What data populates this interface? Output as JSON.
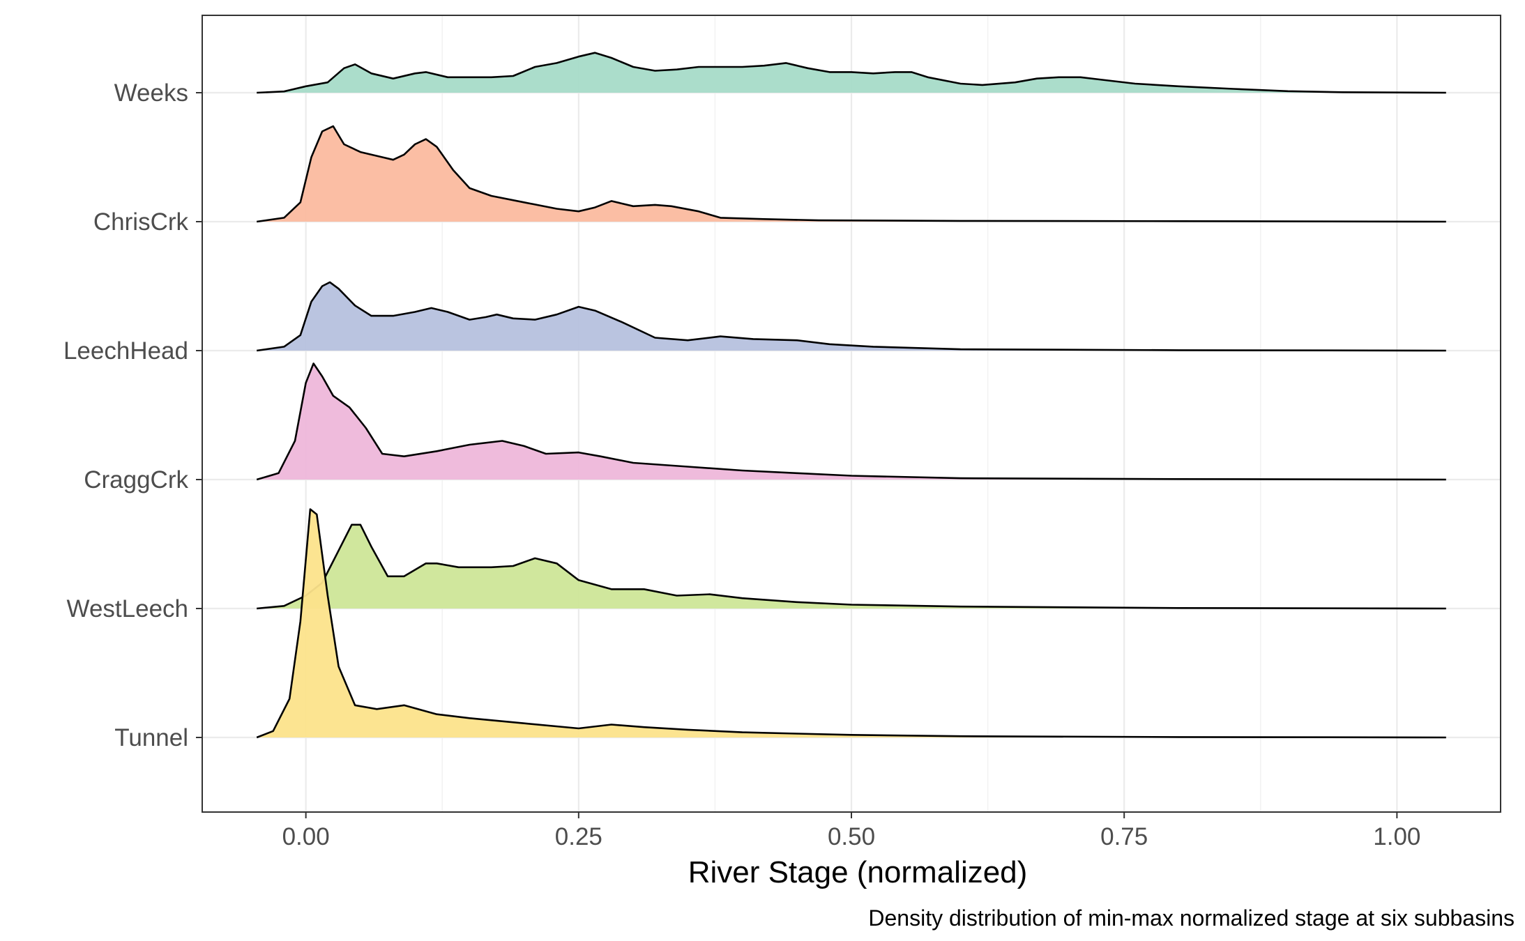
{
  "chart_data": {
    "type": "ridgeline",
    "xlabel": "River Stage (normalized)",
    "ylabel": "",
    "caption": "Density distribution of min-max normalized stage at six subbasins",
    "xlim": [
      -0.095,
      1.095
    ],
    "x_ticks": [
      0.0,
      0.25,
      0.5,
      0.75,
      1.0
    ],
    "x_tick_labels": [
      "0.00",
      "0.25",
      "0.50",
      "0.75",
      "1.00"
    ],
    "grid": true,
    "density_range": [
      -0.045,
      1.045
    ],
    "scale": "heights relative to the baseline spacing between rows",
    "series": [
      {
        "name": "Weeks",
        "color": "#a6dbc8",
        "points": [
          [
            -0.045,
            0
          ],
          [
            -0.02,
            0.01
          ],
          [
            0,
            0.05
          ],
          [
            0.02,
            0.08
          ],
          [
            0.035,
            0.19
          ],
          [
            0.045,
            0.22
          ],
          [
            0.06,
            0.15
          ],
          [
            0.08,
            0.11
          ],
          [
            0.1,
            0.15
          ],
          [
            0.11,
            0.16
          ],
          [
            0.13,
            0.12
          ],
          [
            0.15,
            0.12
          ],
          [
            0.17,
            0.12
          ],
          [
            0.19,
            0.13
          ],
          [
            0.21,
            0.2
          ],
          [
            0.23,
            0.23
          ],
          [
            0.25,
            0.28
          ],
          [
            0.265,
            0.31
          ],
          [
            0.28,
            0.27
          ],
          [
            0.3,
            0.2
          ],
          [
            0.32,
            0.17
          ],
          [
            0.34,
            0.18
          ],
          [
            0.36,
            0.2
          ],
          [
            0.38,
            0.2
          ],
          [
            0.4,
            0.2
          ],
          [
            0.42,
            0.21
          ],
          [
            0.44,
            0.23
          ],
          [
            0.46,
            0.19
          ],
          [
            0.48,
            0.16
          ],
          [
            0.5,
            0.16
          ],
          [
            0.52,
            0.15
          ],
          [
            0.54,
            0.16
          ],
          [
            0.555,
            0.16
          ],
          [
            0.57,
            0.12
          ],
          [
            0.6,
            0.07
          ],
          [
            0.62,
            0.06
          ],
          [
            0.65,
            0.08
          ],
          [
            0.67,
            0.11
          ],
          [
            0.69,
            0.12
          ],
          [
            0.71,
            0.12
          ],
          [
            0.73,
            0.1
          ],
          [
            0.76,
            0.07
          ],
          [
            0.8,
            0.05
          ],
          [
            0.85,
            0.03
          ],
          [
            0.9,
            0.012
          ],
          [
            0.95,
            0.004
          ],
          [
            1.045,
            0
          ]
        ]
      },
      {
        "name": "ChrisCrk",
        "color": "#fbbb9f",
        "points": [
          [
            -0.045,
            0
          ],
          [
            -0.02,
            0.03
          ],
          [
            -0.005,
            0.15
          ],
          [
            0.005,
            0.5
          ],
          [
            0.015,
            0.7
          ],
          [
            0.025,
            0.74
          ],
          [
            0.035,
            0.6
          ],
          [
            0.05,
            0.54
          ],
          [
            0.07,
            0.5
          ],
          [
            0.08,
            0.48
          ],
          [
            0.09,
            0.52
          ],
          [
            0.1,
            0.6
          ],
          [
            0.11,
            0.64
          ],
          [
            0.12,
            0.58
          ],
          [
            0.135,
            0.4
          ],
          [
            0.15,
            0.26
          ],
          [
            0.17,
            0.2
          ],
          [
            0.2,
            0.15
          ],
          [
            0.23,
            0.1
          ],
          [
            0.25,
            0.08
          ],
          [
            0.265,
            0.11
          ],
          [
            0.28,
            0.16
          ],
          [
            0.3,
            0.12
          ],
          [
            0.32,
            0.13
          ],
          [
            0.335,
            0.12
          ],
          [
            0.36,
            0.08
          ],
          [
            0.38,
            0.03
          ],
          [
            0.42,
            0.02
          ],
          [
            0.47,
            0.01
          ],
          [
            0.6,
            0.006
          ],
          [
            0.8,
            0.004
          ],
          [
            1.045,
            0
          ]
        ]
      },
      {
        "name": "LeechHead",
        "color": "#b6c1de",
        "points": [
          [
            -0.045,
            0
          ],
          [
            -0.02,
            0.03
          ],
          [
            -0.005,
            0.12
          ],
          [
            0.005,
            0.38
          ],
          [
            0.015,
            0.5
          ],
          [
            0.022,
            0.53
          ],
          [
            0.03,
            0.48
          ],
          [
            0.045,
            0.35
          ],
          [
            0.06,
            0.27
          ],
          [
            0.08,
            0.27
          ],
          [
            0.1,
            0.3
          ],
          [
            0.115,
            0.33
          ],
          [
            0.13,
            0.3
          ],
          [
            0.15,
            0.24
          ],
          [
            0.165,
            0.26
          ],
          [
            0.175,
            0.28
          ],
          [
            0.19,
            0.25
          ],
          [
            0.21,
            0.24
          ],
          [
            0.23,
            0.28
          ],
          [
            0.25,
            0.34
          ],
          [
            0.265,
            0.31
          ],
          [
            0.29,
            0.22
          ],
          [
            0.32,
            0.1
          ],
          [
            0.35,
            0.08
          ],
          [
            0.38,
            0.11
          ],
          [
            0.41,
            0.09
          ],
          [
            0.45,
            0.08
          ],
          [
            0.48,
            0.05
          ],
          [
            0.52,
            0.03
          ],
          [
            0.6,
            0.01
          ],
          [
            0.8,
            0.003
          ],
          [
            1.045,
            0
          ]
        ]
      },
      {
        "name": "CraggCrk",
        "color": "#eeb7da",
        "points": [
          [
            -0.045,
            0
          ],
          [
            -0.025,
            0.05
          ],
          [
            -0.01,
            0.3
          ],
          [
            0,
            0.75
          ],
          [
            0.007,
            0.9
          ],
          [
            0.015,
            0.8
          ],
          [
            0.025,
            0.65
          ],
          [
            0.04,
            0.56
          ],
          [
            0.055,
            0.4
          ],
          [
            0.07,
            0.2
          ],
          [
            0.09,
            0.18
          ],
          [
            0.12,
            0.22
          ],
          [
            0.15,
            0.27
          ],
          [
            0.18,
            0.3
          ],
          [
            0.2,
            0.26
          ],
          [
            0.22,
            0.2
          ],
          [
            0.25,
            0.21
          ],
          [
            0.27,
            0.18
          ],
          [
            0.3,
            0.13
          ],
          [
            0.35,
            0.1
          ],
          [
            0.4,
            0.07
          ],
          [
            0.45,
            0.05
          ],
          [
            0.5,
            0.03
          ],
          [
            0.6,
            0.01
          ],
          [
            0.8,
            0.004
          ],
          [
            1.045,
            0
          ]
        ]
      },
      {
        "name": "WestLeech",
        "color": "#cde698",
        "points": [
          [
            -0.045,
            0
          ],
          [
            -0.02,
            0.02
          ],
          [
            0,
            0.1
          ],
          [
            0.015,
            0.2
          ],
          [
            0.03,
            0.45
          ],
          [
            0.042,
            0.65
          ],
          [
            0.05,
            0.65
          ],
          [
            0.06,
            0.48
          ],
          [
            0.075,
            0.25
          ],
          [
            0.09,
            0.25
          ],
          [
            0.11,
            0.35
          ],
          [
            0.12,
            0.35
          ],
          [
            0.14,
            0.32
          ],
          [
            0.17,
            0.32
          ],
          [
            0.19,
            0.33
          ],
          [
            0.21,
            0.39
          ],
          [
            0.23,
            0.35
          ],
          [
            0.25,
            0.22
          ],
          [
            0.28,
            0.15
          ],
          [
            0.31,
            0.15
          ],
          [
            0.34,
            0.1
          ],
          [
            0.37,
            0.11
          ],
          [
            0.4,
            0.08
          ],
          [
            0.45,
            0.05
          ],
          [
            0.5,
            0.03
          ],
          [
            0.6,
            0.015
          ],
          [
            0.8,
            0.004
          ],
          [
            1.045,
            0
          ]
        ]
      },
      {
        "name": "Tunnel",
        "color": "#fce38b",
        "points": [
          [
            -0.045,
            0
          ],
          [
            -0.03,
            0.05
          ],
          [
            -0.015,
            0.3
          ],
          [
            -0.005,
            0.9
          ],
          [
            0.004,
            1.77
          ],
          [
            0.01,
            1.73
          ],
          [
            0.02,
            1.1
          ],
          [
            0.03,
            0.55
          ],
          [
            0.045,
            0.25
          ],
          [
            0.065,
            0.22
          ],
          [
            0.09,
            0.25
          ],
          [
            0.12,
            0.18
          ],
          [
            0.15,
            0.15
          ],
          [
            0.2,
            0.11
          ],
          [
            0.25,
            0.07
          ],
          [
            0.28,
            0.1
          ],
          [
            0.31,
            0.08
          ],
          [
            0.35,
            0.06
          ],
          [
            0.4,
            0.04
          ],
          [
            0.45,
            0.03
          ],
          [
            0.5,
            0.02
          ],
          [
            0.6,
            0.01
          ],
          [
            0.8,
            0.003
          ],
          [
            1.045,
            0
          ]
        ]
      }
    ]
  }
}
